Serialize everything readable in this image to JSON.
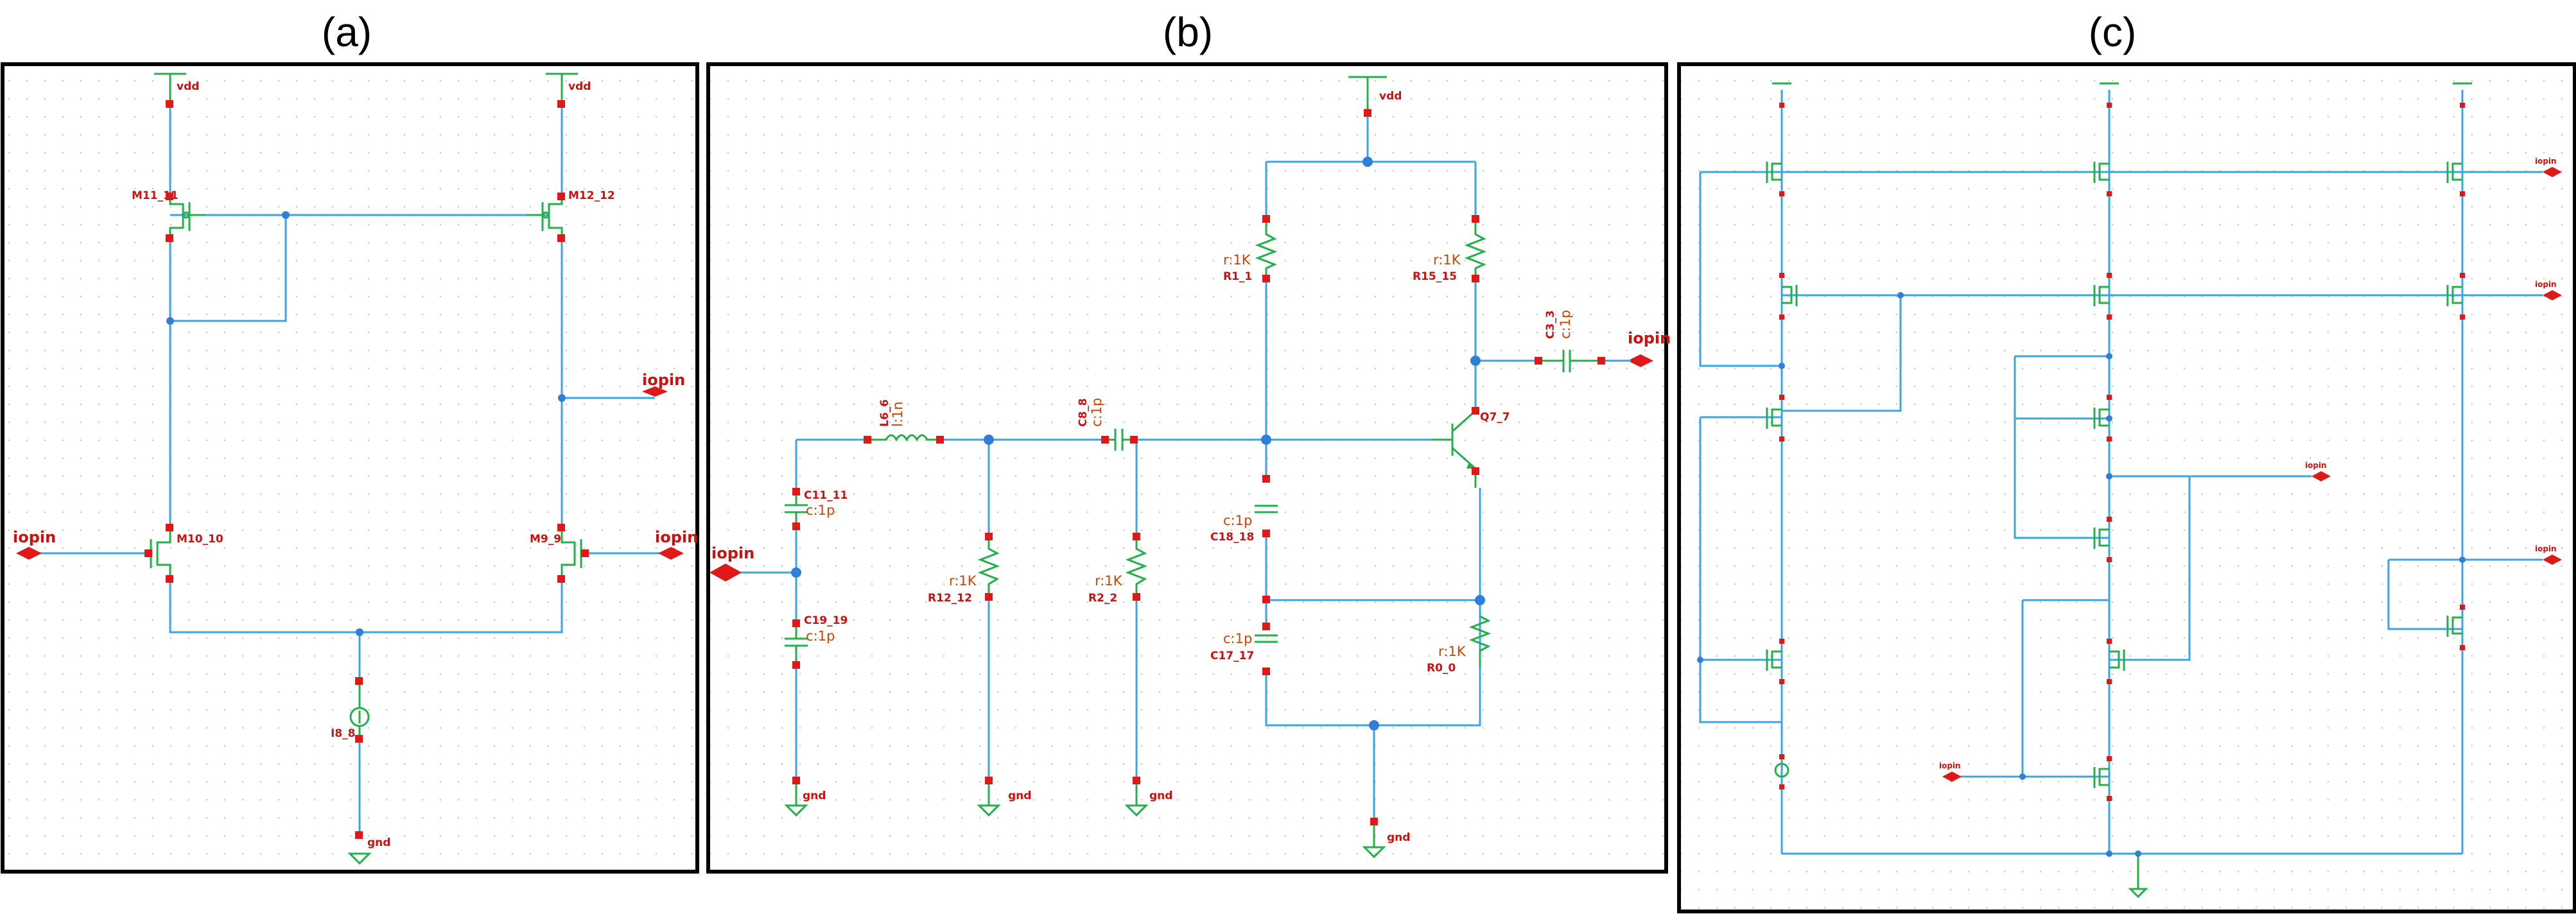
{
  "panels": [
    {
      "label": "(a)"
    },
    {
      "label": "(b)"
    },
    {
      "label": "(c)"
    }
  ],
  "panel_a": {
    "vdd_left": "vdd",
    "vdd_right": "vdd",
    "m11": "M11_11",
    "m12": "M12_12",
    "m10": "M10_10",
    "m9": "M9_9",
    "i8": "I8_8",
    "gnd": "gnd",
    "iopin_out": "iopin",
    "iopin_left": "iopin",
    "iopin_right": "iopin"
  },
  "panel_b": {
    "vdd": "vdd",
    "r1_val": "r:1K",
    "r1": "R1_1",
    "r15_val": "r:1K",
    "r15": "R15_15",
    "c3": "C3_3",
    "c3_val": "c:1p",
    "iopin_out": "iopin",
    "l6": "L6_6",
    "l6_val": "l:1n",
    "c8": "C8_8",
    "c8_val": "c:1p",
    "q7": "Q7_7",
    "c11": "C11_11",
    "c11_val": "c:1p",
    "iopin_in": "iopin",
    "c19": "C19_19",
    "c19_val": "c:1p",
    "r12_val": "r:1K",
    "r12": "R12_12",
    "r2_val": "r:1K",
    "r2": "R2_2",
    "c18_val": "c:1p",
    "c18": "C18_18",
    "c17_val": "c:1p",
    "c17": "C17_17",
    "r0_val": "r:1K",
    "r0": "R0_0",
    "gnd1": "gnd",
    "gnd2": "gnd",
    "gnd3": "gnd",
    "gnd4": "gnd"
  },
  "panel_c": {
    "iopin_1": "iopin",
    "iopin_2": "iopin",
    "iopin_3": "iopin",
    "iopin_4": "iopin",
    "iopin_5": "iopin"
  }
}
